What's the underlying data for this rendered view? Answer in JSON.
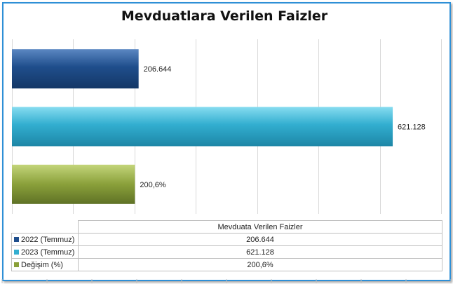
{
  "chart_data": {
    "type": "bar",
    "orientation": "horizontal",
    "title": "Mevduatlara Verilen Faizler",
    "categories": [
      "Mevduata Verilen Faizler"
    ],
    "series": [
      {
        "name": "2022 (Temmuz)",
        "value": 206.644,
        "label": "206.644",
        "color": "#1f4e8c"
      },
      {
        "name": "2023 (Temmuz)",
        "value": 621.128,
        "label": "621.128",
        "color": "#32aed0"
      },
      {
        "name": "Değişim (%)",
        "value": 200.6,
        "label": "200,6%",
        "color": "#8aa03a"
      }
    ],
    "xlim": [
      0,
      700
    ],
    "grid": true,
    "legend": "data-table"
  }
}
